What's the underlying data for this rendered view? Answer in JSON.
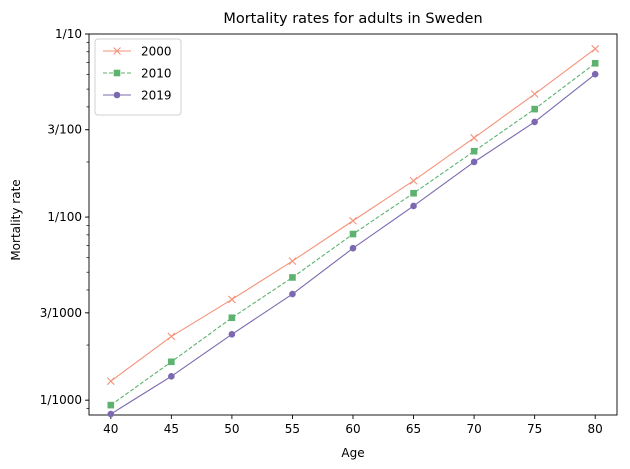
{
  "chart_data": {
    "type": "line",
    "title": "Mortality rates for adults in Sweden",
    "xlabel": "Age",
    "ylabel": "Mortality rate",
    "yscale": "log",
    "xlim": [
      38.2,
      81.8
    ],
    "ylim": [
      0.00083,
      0.1
    ],
    "x_ticks": [
      40,
      45,
      50,
      55,
      60,
      65,
      70,
      75,
      80
    ],
    "y_ticks": [
      {
        "value": 0.001,
        "label": "1/1000"
      },
      {
        "value": 0.003,
        "label": "3/1000"
      },
      {
        "value": 0.01,
        "label": "1/100"
      },
      {
        "value": 0.03,
        "label": "3/100"
      },
      {
        "value": 0.1,
        "label": "1/10"
      }
    ],
    "grid": false,
    "legend_position": "top-left",
    "x": [
      40,
      45,
      50,
      55,
      60,
      65,
      70,
      75,
      80
    ],
    "series": [
      {
        "name": "2000",
        "color": "#f4937a",
        "marker": "x",
        "dash": "solid",
        "values": [
          0.00127,
          0.00223,
          0.00355,
          0.00575,
          0.00955,
          0.0158,
          0.0271,
          0.047,
          0.083
        ]
      },
      {
        "name": "2010",
        "color": "#5cb26e",
        "marker": "square",
        "dash": "dashed",
        "values": [
          0.00094,
          0.00162,
          0.00282,
          0.00468,
          0.00808,
          0.0135,
          0.0229,
          0.0389,
          0.0692
        ]
      },
      {
        "name": "2019",
        "color": "#7b68b0",
        "marker": "circle",
        "dash": "solid",
        "values": [
          0.00084,
          0.00135,
          0.00229,
          0.0038,
          0.00676,
          0.0115,
          0.02,
          0.0331,
          0.0603
        ]
      }
    ]
  }
}
